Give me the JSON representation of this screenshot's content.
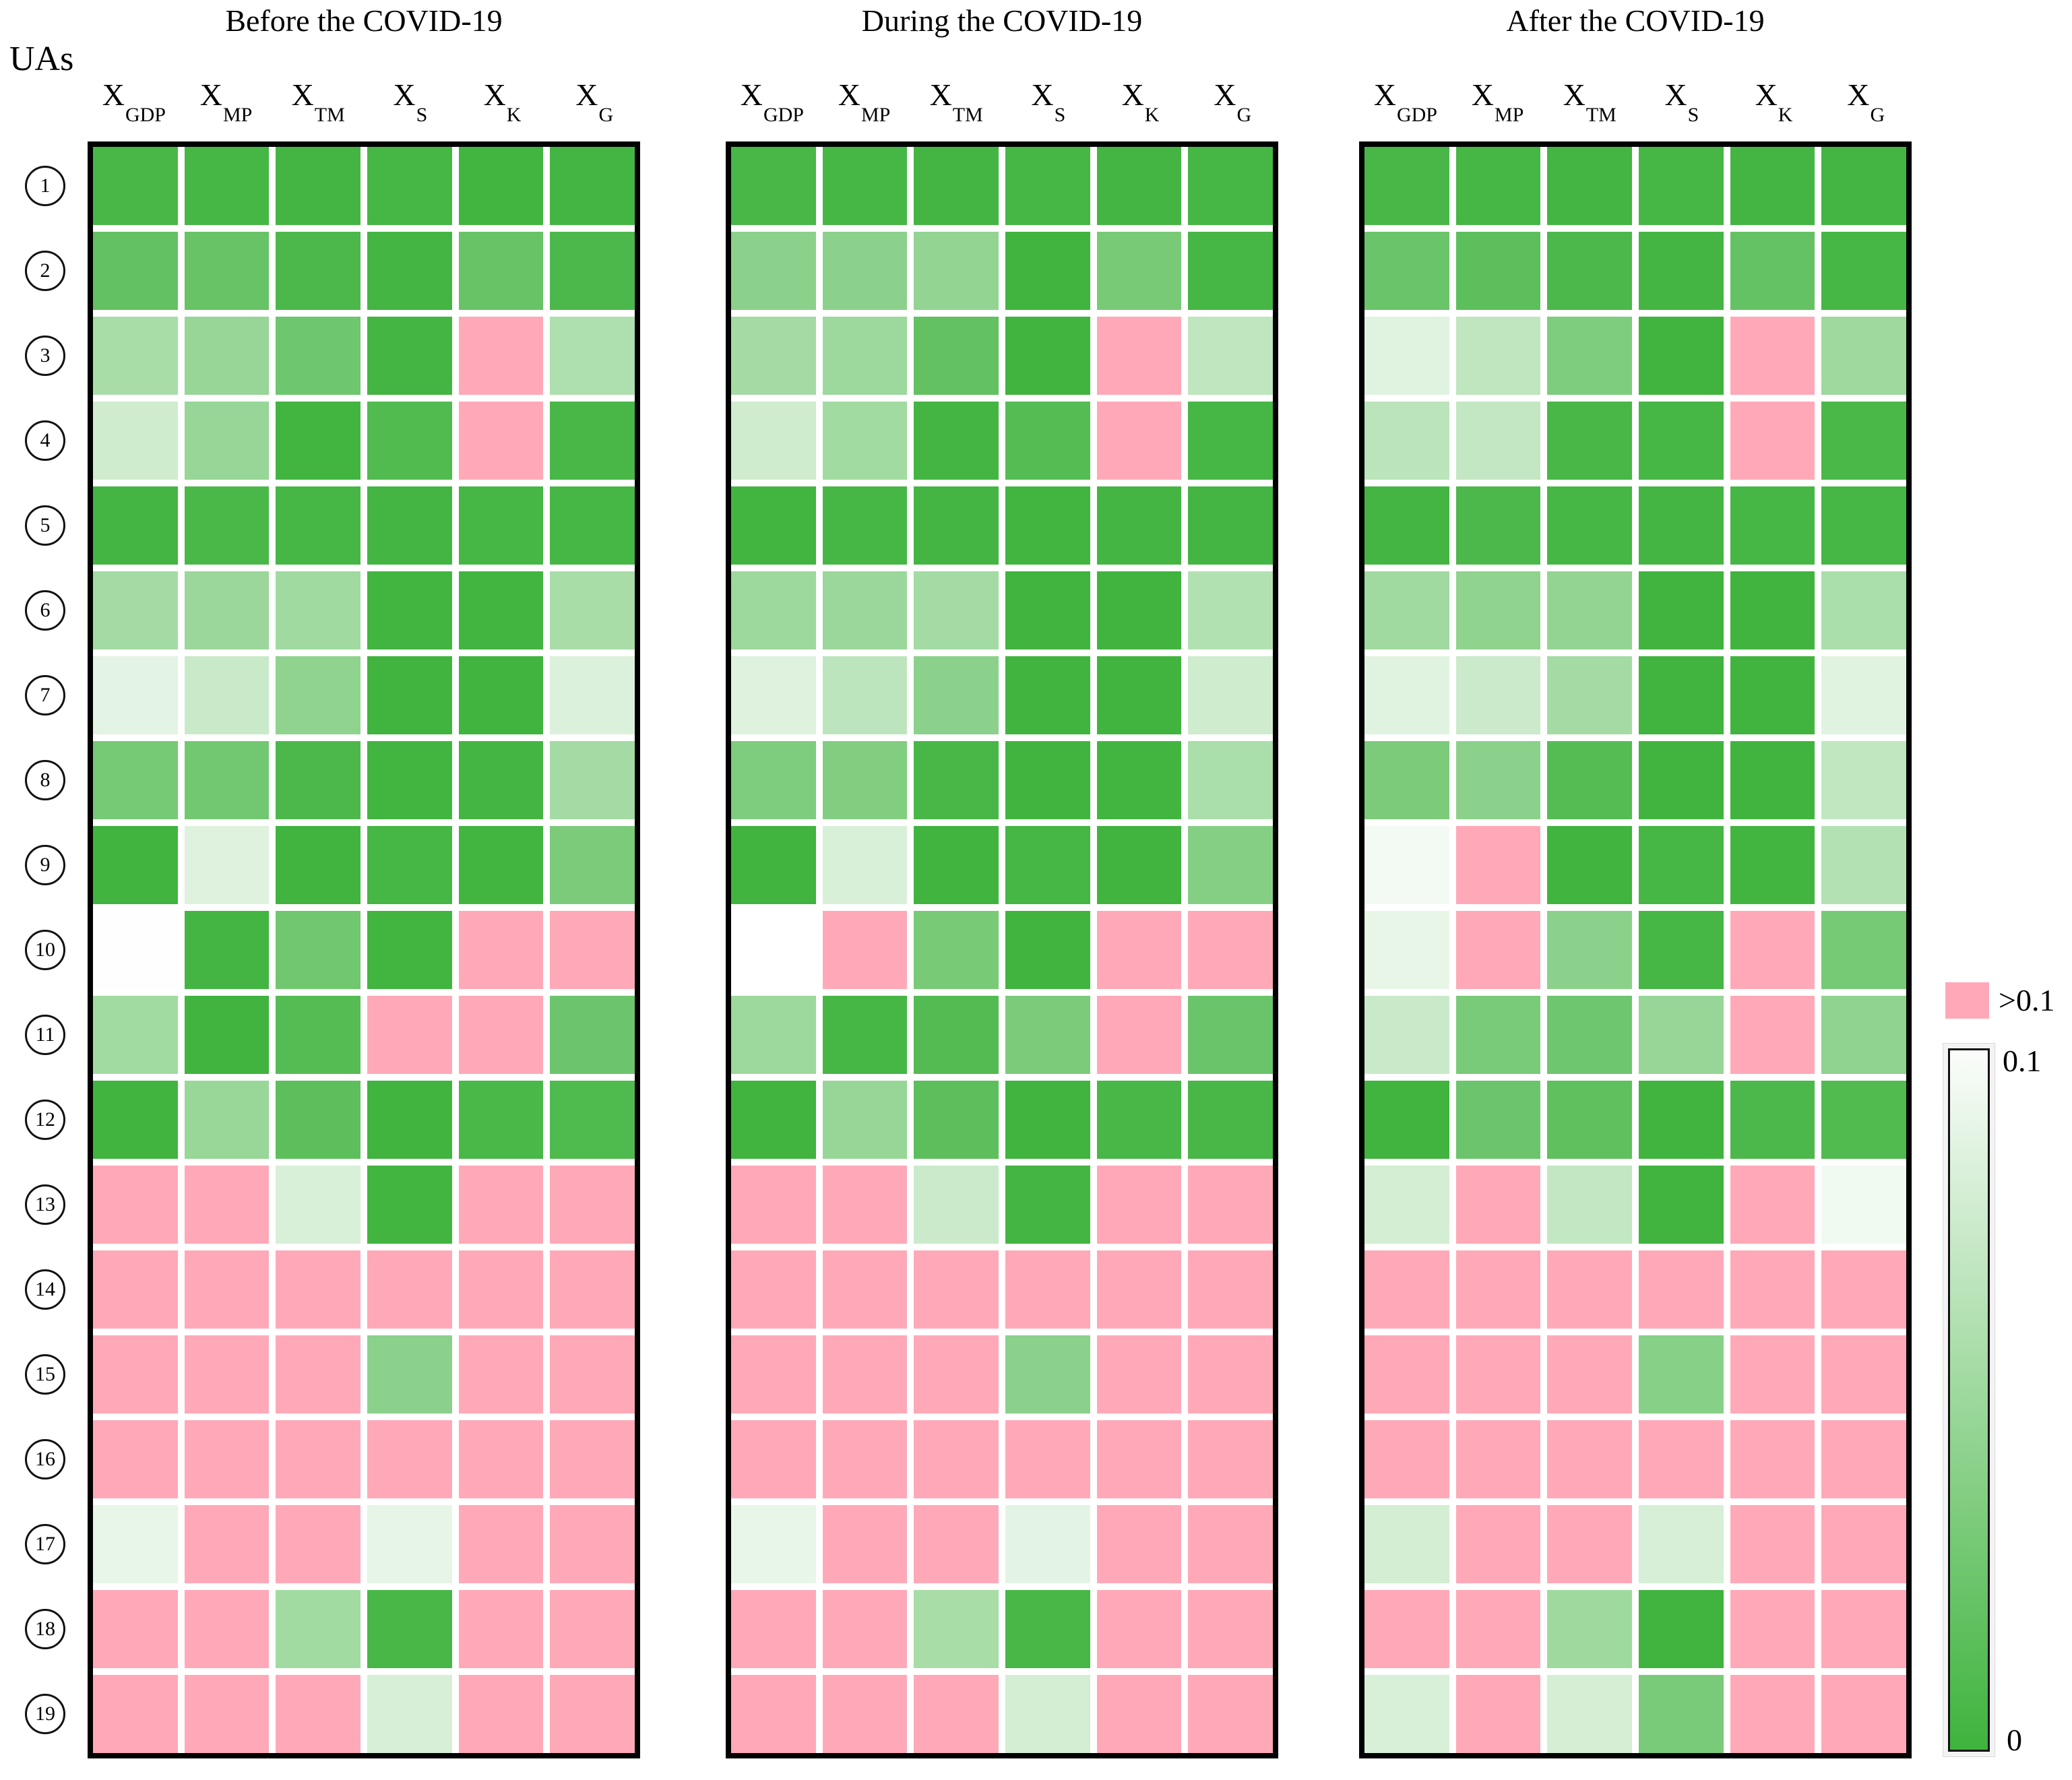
{
  "page": {
    "uas_label": "UAs"
  },
  "colors": {
    "pink": "#FFA9B8",
    "green_zero": "#3EB33D",
    "white_max": "#FFFFFF",
    "border": "#000000"
  },
  "legend": {
    "pink_label": ">0.1",
    "top_label": "0.1",
    "bottom_label": "0",
    "pink_meaning": "value greater than 0.1",
    "gradient_top_value": 0.1,
    "gradient_bottom_value": 0
  },
  "chart_data": [
    {
      "type": "heatmap",
      "title": "Before the COVID-19",
      "columns": [
        {
          "symbol": "X",
          "subscript": "GDP"
        },
        {
          "symbol": "X",
          "subscript": "MP"
        },
        {
          "symbol": "X",
          "subscript": "TM"
        },
        {
          "symbol": "X",
          "subscript": "S"
        },
        {
          "symbol": "X",
          "subscript": "K"
        },
        {
          "symbol": "X",
          "subscript": "G"
        }
      ],
      "rows": [
        "1",
        "2",
        "3",
        "4",
        "5",
        "6",
        "7",
        "8",
        "9",
        "10",
        "11",
        "12",
        "13",
        "14",
        "15",
        "16",
        "17",
        "18",
        "19"
      ],
      "value_scale": "0 (saturated green) to 0.1 (white); 0.15 encodes pink = >0.1",
      "values": [
        [
          0.005,
          0.004,
          0.003,
          0.004,
          0.002,
          0.003
        ],
        [
          0.019,
          0.021,
          0.007,
          0.003,
          0.021,
          0.007
        ],
        [
          0.055,
          0.046,
          0.025,
          0.003,
          0.15,
          0.058
        ],
        [
          0.075,
          0.046,
          0.002,
          0.01,
          0.15,
          0.005
        ],
        [
          0.003,
          0.006,
          0.004,
          0.003,
          0.004,
          0.004
        ],
        [
          0.053,
          0.048,
          0.051,
          0.002,
          0.002,
          0.055
        ],
        [
          0.086,
          0.072,
          0.042,
          0.001,
          0.001,
          0.082
        ],
        [
          0.029,
          0.027,
          0.007,
          0.002,
          0.003,
          0.053
        ],
        [
          0.001,
          0.083,
          0.001,
          0.004,
          0.002,
          0.032
        ],
        [
          0.099,
          0.003,
          0.026,
          0.002,
          0.15,
          0.15
        ],
        [
          0.052,
          0.001,
          0.012,
          0.15,
          0.15,
          0.024
        ],
        [
          0.001,
          0.047,
          0.016,
          0.001,
          0.006,
          0.009
        ],
        [
          0.15,
          0.15,
          0.08,
          0.002,
          0.15,
          0.15
        ],
        [
          0.15,
          0.15,
          0.15,
          0.15,
          0.15,
          0.15
        ],
        [
          0.15,
          0.15,
          0.15,
          0.04,
          0.15,
          0.15
        ],
        [
          0.15,
          0.15,
          0.15,
          0.15,
          0.15,
          0.15
        ],
        [
          0.088,
          0.15,
          0.15,
          0.087,
          0.15,
          0.15
        ],
        [
          0.15,
          0.15,
          0.052,
          0.005,
          0.15,
          0.15
        ],
        [
          0.15,
          0.15,
          0.15,
          0.079,
          0.15,
          0.15
        ]
      ]
    },
    {
      "type": "heatmap",
      "title": "During the COVID-19",
      "columns": [
        {
          "symbol": "X",
          "subscript": "GDP"
        },
        {
          "symbol": "X",
          "subscript": "MP"
        },
        {
          "symbol": "X",
          "subscript": "TM"
        },
        {
          "symbol": "X",
          "subscript": "S"
        },
        {
          "symbol": "X",
          "subscript": "K"
        },
        {
          "symbol": "X",
          "subscript": "G"
        }
      ],
      "rows": [
        "1",
        "2",
        "3",
        "4",
        "5",
        "6",
        "7",
        "8",
        "9",
        "10",
        "11",
        "12",
        "13",
        "14",
        "15",
        "16",
        "17",
        "18",
        "19"
      ],
      "value_scale": "0 (saturated green) to 0.1 (white); 0.15 encodes pink = >0.1",
      "values": [
        [
          0.005,
          0.004,
          0.003,
          0.004,
          0.003,
          0.004
        ],
        [
          0.04,
          0.04,
          0.044,
          0.001,
          0.03,
          0.004
        ],
        [
          0.053,
          0.049,
          0.019,
          0.001,
          0.15,
          0.067
        ],
        [
          0.075,
          0.052,
          0.003,
          0.012,
          0.15,
          0.004
        ],
        [
          0.002,
          0.004,
          0.003,
          0.002,
          0.003,
          0.003
        ],
        [
          0.049,
          0.048,
          0.053,
          0.001,
          0.001,
          0.06
        ],
        [
          0.083,
          0.066,
          0.04,
          0.001,
          0.001,
          0.075
        ],
        [
          0.033,
          0.035,
          0.005,
          0.001,
          0.002,
          0.056
        ],
        [
          0.001,
          0.08,
          0.001,
          0.004,
          0.001,
          0.037
        ],
        [
          0.1,
          0.15,
          0.03,
          0.001,
          0.15,
          0.15
        ],
        [
          0.049,
          0.004,
          0.011,
          0.032,
          0.15,
          0.023
        ],
        [
          0.001,
          0.046,
          0.016,
          0.001,
          0.005,
          0.005
        ],
        [
          0.15,
          0.15,
          0.073,
          0.003,
          0.15,
          0.15
        ],
        [
          0.15,
          0.15,
          0.15,
          0.15,
          0.15,
          0.15
        ],
        [
          0.15,
          0.15,
          0.15,
          0.04,
          0.15,
          0.15
        ],
        [
          0.15,
          0.15,
          0.15,
          0.15,
          0.15,
          0.15
        ],
        [
          0.088,
          0.15,
          0.15,
          0.086,
          0.15,
          0.15
        ],
        [
          0.15,
          0.15,
          0.055,
          0.005,
          0.15,
          0.15
        ],
        [
          0.15,
          0.15,
          0.15,
          0.077,
          0.15,
          0.15
        ]
      ]
    },
    {
      "type": "heatmap",
      "title": "After the COVID-19",
      "columns": [
        {
          "symbol": "X",
          "subscript": "GDP"
        },
        {
          "symbol": "X",
          "subscript": "MP"
        },
        {
          "symbol": "X",
          "subscript": "TM"
        },
        {
          "symbol": "X",
          "subscript": "S"
        },
        {
          "symbol": "X",
          "subscript": "K"
        },
        {
          "symbol": "X",
          "subscript": "G"
        }
      ],
      "rows": [
        "1",
        "2",
        "3",
        "4",
        "5",
        "6",
        "7",
        "8",
        "9",
        "10",
        "11",
        "12",
        "13",
        "14",
        "15",
        "16",
        "17",
        "18",
        "19"
      ],
      "value_scale": "0 (saturated green) to 0.1 (white); 0.15 encodes pink = >0.1",
      "values": [
        [
          0.005,
          0.004,
          0.003,
          0.004,
          0.003,
          0.003
        ],
        [
          0.023,
          0.016,
          0.007,
          0.003,
          0.02,
          0.004
        ],
        [
          0.084,
          0.067,
          0.033,
          0.001,
          0.15,
          0.05
        ],
        [
          0.065,
          0.069,
          0.005,
          0.004,
          0.15,
          0.006
        ],
        [
          0.003,
          0.007,
          0.004,
          0.003,
          0.004,
          0.004
        ],
        [
          0.051,
          0.042,
          0.044,
          0.001,
          0.001,
          0.056
        ],
        [
          0.084,
          0.073,
          0.053,
          0.001,
          0.001,
          0.084
        ],
        [
          0.032,
          0.04,
          0.012,
          0.001,
          0.001,
          0.068
        ],
        [
          0.094,
          0.15,
          0.001,
          0.004,
          0.002,
          0.061
        ],
        [
          0.088,
          0.15,
          0.04,
          0.004,
          0.15,
          0.029
        ],
        [
          0.072,
          0.031,
          0.025,
          0.046,
          0.15,
          0.042
        ],
        [
          0.001,
          0.024,
          0.017,
          0.001,
          0.007,
          0.01
        ],
        [
          0.077,
          0.15,
          0.069,
          0.001,
          0.15,
          0.093
        ],
        [
          0.15,
          0.15,
          0.15,
          0.15,
          0.15,
          0.15
        ],
        [
          0.15,
          0.15,
          0.15,
          0.038,
          0.15,
          0.15
        ],
        [
          0.15,
          0.15,
          0.15,
          0.15,
          0.15,
          0.15
        ],
        [
          0.077,
          0.15,
          0.15,
          0.079,
          0.15,
          0.15
        ],
        [
          0.15,
          0.15,
          0.05,
          0.001,
          0.15,
          0.15
        ],
        [
          0.08,
          0.15,
          0.078,
          0.031,
          0.15,
          0.15
        ]
      ]
    }
  ]
}
